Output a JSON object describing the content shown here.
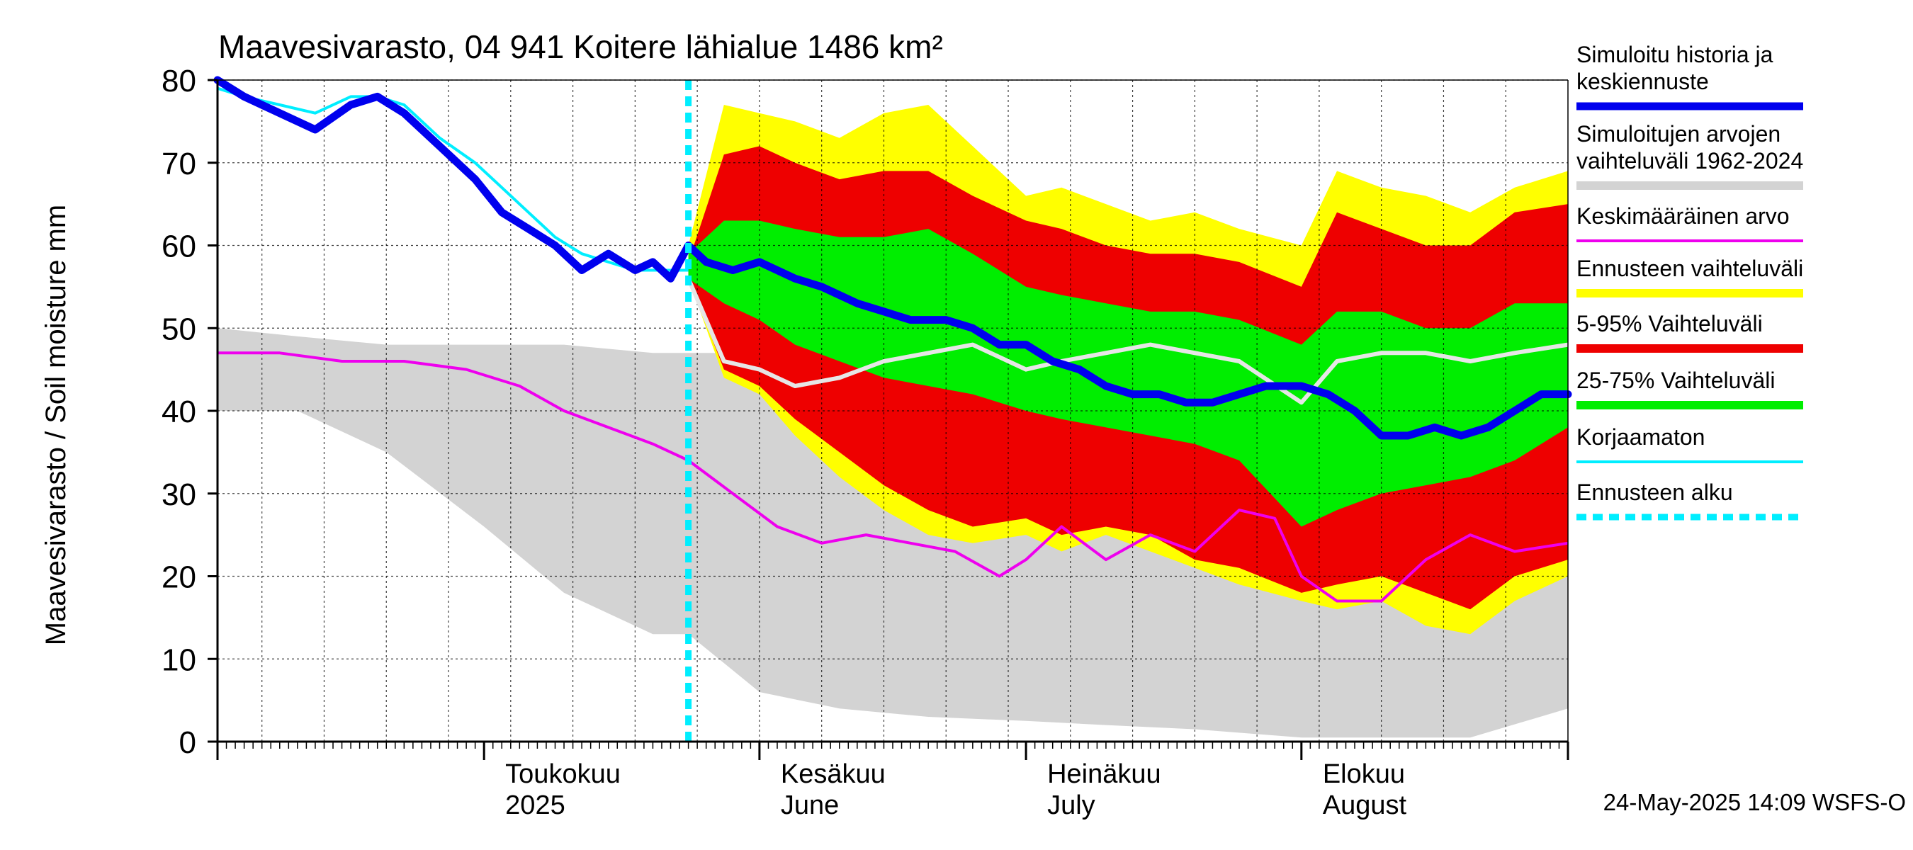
{
  "chart_data": {
    "type": "area",
    "title": "Maavesivarasto, 04 941 Koitere lähialue 1486 km²",
    "ylabel": "Maavesivarasto / Soil moisture   mm",
    "ylim": [
      0,
      80
    ],
    "yticks": [
      0,
      10,
      20,
      30,
      40,
      50,
      60,
      70,
      80
    ],
    "xlim": [
      "2025-04-01",
      "2025-08-31"
    ],
    "month_labels": [
      {
        "line1": "Toukokuu",
        "line2": "2025",
        "date": "2025-05-01"
      },
      {
        "line1": "Kesäkuu",
        "line2": "June",
        "date": "2025-06-01"
      },
      {
        "line1": "Heinäkuu",
        "line2": "July",
        "date": "2025-07-01"
      },
      {
        "line1": "Elokuu",
        "line2": "August",
        "date": "2025-08-01"
      }
    ],
    "forecast_start": "2025-05-24",
    "footer": "24-May-2025 14:09 WSFS-O",
    "legend": [
      {
        "key": "sim",
        "label": "Simuloitu historia ja keskiennuste",
        "lines": [
          "Simuloitu historia ja",
          "keskiennuste"
        ],
        "color": "#0000ee",
        "style": "line"
      },
      {
        "key": "hist",
        "label": "Simuloitujen arvojen vaihteluväli 1962-2024",
        "lines": [
          "Simuloitujen arvojen",
          "vaihteluväli 1962-2024"
        ],
        "color": "#d3d3d3",
        "style": "band"
      },
      {
        "key": "mean",
        "label": "Keskimääräinen arvo",
        "lines": [
          "Keskimääräinen arvo"
        ],
        "color": "#ee00ee",
        "style": "thin"
      },
      {
        "key": "fcrange",
        "label": "Ennusteen vaihteluväli",
        "lines": [
          "Ennusteen vaihteluväli"
        ],
        "color": "#ffff00",
        "style": "band"
      },
      {
        "key": "p595",
        "label": "5-95% Vaihteluväli",
        "lines": [
          "5-95% Vaihteluväli"
        ],
        "color": "#ee0000",
        "style": "band"
      },
      {
        "key": "p2575",
        "label": "25-75% Vaihteluväli",
        "lines": [
          "25-75% Vaihteluväli"
        ],
        "color": "#00ee00",
        "style": "band"
      },
      {
        "key": "uncorr",
        "label": "Korjaamaton",
        "lines": [
          "Korjaamaton"
        ],
        "color": "#00eeff",
        "style": "thin"
      },
      {
        "key": "fcstart",
        "label": "Ennusteen alku",
        "lines": [
          "Ennusteen alku"
        ],
        "color": "#00eeff",
        "style": "dashed"
      }
    ],
    "series": {
      "hist_band": {
        "dates": [
          "2025-04-01",
          "2025-04-10",
          "2025-04-20",
          "2025-05-01",
          "2025-05-10",
          "2025-05-20",
          "2025-05-24",
          "2025-06-01",
          "2025-06-10",
          "2025-06-20",
          "2025-07-01",
          "2025-07-10",
          "2025-07-20",
          "2025-08-01",
          "2025-08-10",
          "2025-08-20",
          "2025-08-31"
        ],
        "upper": [
          50,
          49,
          48,
          48,
          48,
          47,
          47,
          47,
          45,
          38,
          33,
          31,
          29,
          27,
          24,
          20,
          20
        ],
        "lower": [
          40,
          40,
          35,
          26,
          18,
          13,
          13,
          6,
          4,
          3,
          2.5,
          2,
          1.5,
          0.5,
          0.5,
          0.5,
          4
        ]
      },
      "forecast_range": {
        "dates": [
          "2025-05-24",
          "2025-05-28",
          "2025-06-01",
          "2025-06-05",
          "2025-06-10",
          "2025-06-15",
          "2025-06-20",
          "2025-06-25",
          "2025-07-01",
          "2025-07-05",
          "2025-07-10",
          "2025-07-15",
          "2025-07-20",
          "2025-07-25",
          "2025-08-01",
          "2025-08-05",
          "2025-08-10",
          "2025-08-15",
          "2025-08-20",
          "2025-08-25",
          "2025-08-31"
        ],
        "upper": [
          60,
          77,
          76,
          75,
          73,
          76,
          77,
          72,
          66,
          67,
          65,
          63,
          64,
          62,
          60,
          69,
          67,
          66,
          64,
          67,
          69
        ],
        "lower": [
          56,
          44,
          42,
          37,
          32,
          28,
          25,
          24,
          25,
          23,
          25,
          23,
          21,
          19,
          17,
          16,
          17,
          14,
          13,
          17,
          20
        ]
      },
      "p5_95": {
        "dates": [
          "2025-05-24",
          "2025-05-28",
          "2025-06-01",
          "2025-06-05",
          "2025-06-10",
          "2025-06-15",
          "2025-06-20",
          "2025-06-25",
          "2025-07-01",
          "2025-07-05",
          "2025-07-10",
          "2025-07-15",
          "2025-07-20",
          "2025-07-25",
          "2025-08-01",
          "2025-08-05",
          "2025-08-10",
          "2025-08-15",
          "2025-08-20",
          "2025-08-25",
          "2025-08-31"
        ],
        "upper": [
          58,
          71,
          72,
          70,
          68,
          69,
          69,
          66,
          63,
          62,
          60,
          59,
          59,
          58,
          55,
          64,
          62,
          60,
          60,
          64,
          65
        ],
        "lower": [
          56,
          45,
          43,
          39,
          35,
          31,
          28,
          26,
          27,
          25,
          26,
          25,
          22,
          21,
          18,
          19,
          20,
          18,
          16,
          20,
          22
        ]
      },
      "p25_75": {
        "dates": [
          "2025-05-24",
          "2025-05-28",
          "2025-06-01",
          "2025-06-05",
          "2025-06-10",
          "2025-06-15",
          "2025-06-20",
          "2025-06-25",
          "2025-07-01",
          "2025-07-05",
          "2025-07-10",
          "2025-07-15",
          "2025-07-20",
          "2025-07-25",
          "2025-08-01",
          "2025-08-05",
          "2025-08-10",
          "2025-08-15",
          "2025-08-20",
          "2025-08-25",
          "2025-08-31"
        ],
        "upper": [
          59,
          63,
          63,
          62,
          61,
          61,
          62,
          59,
          55,
          54,
          53,
          52,
          52,
          51,
          48,
          52,
          52,
          50,
          50,
          53,
          53
        ],
        "lower": [
          56,
          53,
          51,
          48,
          46,
          44,
          43,
          42,
          40,
          39,
          38,
          37,
          36,
          34,
          26,
          28,
          30,
          31,
          32,
          34,
          38
        ]
      },
      "median_forecast_light": {
        "dates": [
          "2025-05-24",
          "2025-05-28",
          "2025-06-01",
          "2025-06-05",
          "2025-06-10",
          "2025-06-15",
          "2025-06-20",
          "2025-06-25",
          "2025-07-01",
          "2025-07-05",
          "2025-07-10",
          "2025-07-15",
          "2025-07-20",
          "2025-07-25",
          "2025-08-01",
          "2025-08-05",
          "2025-08-10",
          "2025-08-15",
          "2025-08-20",
          "2025-08-25",
          "2025-08-31"
        ],
        "values": [
          56,
          46,
          45,
          43,
          44,
          46,
          47,
          48,
          45,
          46,
          47,
          48,
          47,
          46,
          41,
          46,
          47,
          47,
          46,
          47,
          48
        ]
      },
      "simulated": {
        "dates": [
          "2025-04-01",
          "2025-04-04",
          "2025-04-08",
          "2025-04-12",
          "2025-04-16",
          "2025-04-19",
          "2025-04-22",
          "2025-04-26",
          "2025-04-30",
          "2025-05-03",
          "2025-05-06",
          "2025-05-09",
          "2025-05-12",
          "2025-05-15",
          "2025-05-18",
          "2025-05-20",
          "2025-05-22",
          "2025-05-24",
          "2025-05-26",
          "2025-05-29",
          "2025-06-01",
          "2025-06-05",
          "2025-06-08",
          "2025-06-12",
          "2025-06-15",
          "2025-06-18",
          "2025-06-22",
          "2025-06-25",
          "2025-06-28",
          "2025-07-01",
          "2025-07-04",
          "2025-07-07",
          "2025-07-10",
          "2025-07-13",
          "2025-07-16",
          "2025-07-19",
          "2025-07-22",
          "2025-07-25",
          "2025-07-28",
          "2025-08-01",
          "2025-08-04",
          "2025-08-07",
          "2025-08-10",
          "2025-08-13",
          "2025-08-16",
          "2025-08-19",
          "2025-08-22",
          "2025-08-25",
          "2025-08-28",
          "2025-08-31"
        ],
        "values": [
          80,
          78,
          76,
          74,
          77,
          78,
          76,
          72,
          68,
          64,
          62,
          60,
          57,
          59,
          57,
          58,
          56,
          60,
          58,
          57,
          58,
          56,
          55,
          53,
          52,
          51,
          51,
          50,
          48,
          48,
          46,
          45,
          43,
          42,
          42,
          41,
          41,
          42,
          43,
          43,
          42,
          40,
          37,
          37,
          38,
          37,
          38,
          40,
          42,
          42
        ]
      },
      "mean": {
        "dates": [
          "2025-04-01",
          "2025-04-08",
          "2025-04-15",
          "2025-04-22",
          "2025-04-29",
          "2025-05-05",
          "2025-05-10",
          "2025-05-15",
          "2025-05-20",
          "2025-05-24",
          "2025-05-29",
          "2025-06-03",
          "2025-06-08",
          "2025-06-13",
          "2025-06-18",
          "2025-06-23",
          "2025-06-28",
          "2025-07-01",
          "2025-07-05",
          "2025-07-10",
          "2025-07-15",
          "2025-07-20",
          "2025-07-25",
          "2025-07-29",
          "2025-08-01",
          "2025-08-05",
          "2025-08-10",
          "2025-08-15",
          "2025-08-20",
          "2025-08-25",
          "2025-08-31"
        ],
        "values": [
          47,
          47,
          46,
          46,
          45,
          43,
          40,
          38,
          36,
          34,
          30,
          26,
          24,
          25,
          24,
          23,
          20,
          22,
          26,
          22,
          25,
          23,
          28,
          27,
          20,
          17,
          17,
          22,
          25,
          23,
          24
        ]
      },
      "uncorrected": {
        "dates": [
          "2025-04-01",
          "2025-04-04",
          "2025-04-08",
          "2025-04-12",
          "2025-04-16",
          "2025-04-19",
          "2025-04-22",
          "2025-04-26",
          "2025-04-30",
          "2025-05-03",
          "2025-05-06",
          "2025-05-09",
          "2025-05-12",
          "2025-05-15",
          "2025-05-18",
          "2025-05-20",
          "2025-05-22",
          "2025-05-24"
        ],
        "values": [
          79,
          78,
          77,
          76,
          78,
          78,
          77,
          73,
          70,
          67,
          64,
          61,
          59,
          58,
          57,
          57,
          57,
          57
        ]
      }
    }
  }
}
